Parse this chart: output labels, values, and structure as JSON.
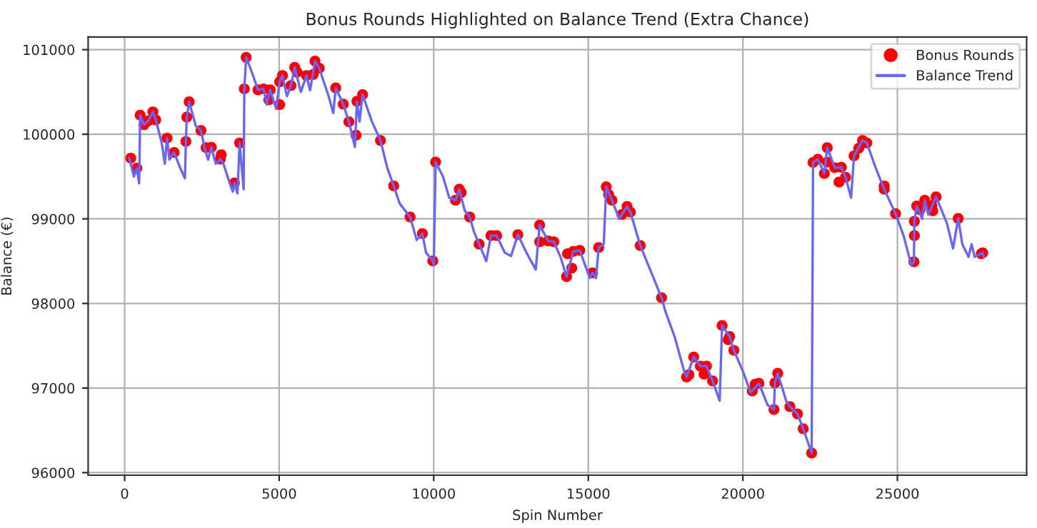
{
  "chart_data": {
    "type": "line",
    "title": "Bonus Rounds Highlighted on Balance Trend (Extra Chance)",
    "xlabel": "Spin Number",
    "ylabel": "Balance (€)",
    "xlim": [
      -1180,
      29180
    ],
    "ylim": [
      95970,
      101150
    ],
    "xticks": [
      0,
      5000,
      10000,
      15000,
      20000,
      25000
    ],
    "yticks": [
      96000,
      97000,
      98000,
      99000,
      100000,
      101000
    ],
    "grid": true,
    "legend": "top right",
    "series": [
      {
        "name": "Bonus Rounds",
        "type": "scatter",
        "color": "#ff0000",
        "marker": "circle",
        "x": [
          198,
          396,
          503,
          625,
          762,
          915,
          1006,
          1372,
          1601,
          1982,
          2012,
          2088,
          2470,
          2637,
          2805,
          3095,
          3125,
          3552,
          3720,
          3872,
          3933,
          4314,
          4497,
          4665,
          4710,
          5015,
          5015,
          5107,
          5381,
          5503,
          5579,
          5884,
          6098,
          6159,
          6296,
          6829,
          7073,
          7256,
          7485,
          7515,
          7698,
          8277,
          8704,
          9235,
          9633,
          9969,
          10061,
          10703,
          10826,
          10887,
          11162,
          11468,
          11850,
          12034,
          12722,
          13425,
          13425,
          13700,
          13884,
          14297,
          14327,
          14465,
          14511,
          14725,
          15138,
          15336,
          15581,
          15657,
          15765,
          16086,
          16254,
          16361,
          16682,
          17370,
          18180,
          18257,
          18410,
          18624,
          18746,
          18823,
          19021,
          19329,
          19527,
          19573,
          19710,
          20305,
          20396,
          20518,
          21006,
          21037,
          21128,
          21524,
          21768,
          21951,
          22226,
          22271,
          22424,
          22637,
          22729,
          22729,
          22973,
          23110,
          23186,
          23323,
          23598,
          23750,
          23872,
          24009,
          24573,
          24573,
          24939,
          25534,
          25549,
          25549,
          25625,
          25732,
          25884,
          26113,
          26143,
          26250,
          26966,
          27713,
          27759
        ],
        "values": [
          99717,
          99599,
          100226,
          100113,
          100158,
          100265,
          100170,
          99955,
          99785,
          99915,
          100203,
          100384,
          100045,
          99842,
          99847,
          99706,
          99757,
          99424,
          99898,
          100537,
          100910,
          100525,
          100537,
          100407,
          100525,
          100621,
          100350,
          100695,
          100576,
          100791,
          100734,
          100695,
          100706,
          100864,
          100780,
          100548,
          100356,
          100147,
          99989,
          100390,
          100469,
          99927,
          99390,
          99023,
          98825,
          98503,
          99672,
          99220,
          99350,
          99311,
          99023,
          98701,
          98802,
          98802,
          98814,
          98927,
          98729,
          98740,
          98729,
          98317,
          98588,
          98418,
          98616,
          98627,
          98362,
          98661,
          99379,
          99288,
          99220,
          99051,
          99147,
          99080,
          98684,
          98068,
          97131,
          97159,
          97367,
          97260,
          97164,
          97260,
          97085,
          97740,
          97571,
          97610,
          97446,
          96966,
          97045,
          97056,
          96746,
          97062,
          97175,
          96780,
          96695,
          96520,
          96232,
          99667,
          99706,
          99537,
          99672,
          99842,
          99605,
          99435,
          99610,
          99492,
          99746,
          99836,
          99927,
          99898,
          99350,
          99390,
          99062,
          98492,
          98802,
          98972,
          99153,
          99108,
          99220,
          99158,
          99096,
          99260,
          99006,
          98588,
          98599
        ]
      },
      {
        "name": "Balance Trend",
        "color": "#6666ff",
        "line_style": "solid",
        "x": [
          150,
          300,
          396,
          470,
          503,
          625,
          762,
          915,
          1006,
          1200,
          1300,
          1372,
          1450,
          1601,
          1800,
          1950,
          1982,
          2012,
          2088,
          2300,
          2470,
          2600,
          2700,
          2805,
          2950,
          3095,
          3200,
          3400,
          3500,
          3552,
          3650,
          3720,
          3850,
          3872,
          3933,
          4100,
          4314,
          4497,
          4600,
          4710,
          4900,
          5015,
          5107,
          5250,
          5381,
          5503,
          5700,
          5884,
          6000,
          6159,
          6296,
          6600,
          6750,
          6829,
          7073,
          7256,
          7450,
          7515,
          7600,
          7698,
          8000,
          8277,
          8500,
          8704,
          8900,
          9235,
          9450,
          9633,
          9750,
          9969,
          10000,
          10061,
          10300,
          10500,
          10703,
          10826,
          11000,
          11162,
          11300,
          11468,
          11700,
          11850,
          12034,
          12300,
          12500,
          12722,
          13000,
          13300,
          13425,
          13700,
          13884,
          14100,
          14297,
          14511,
          14725,
          14950,
          15050,
          15138,
          15250,
          15336,
          15500,
          15581,
          15765,
          16000,
          16254,
          16361,
          16682,
          17000,
          17370,
          17500,
          17800,
          18100,
          18180,
          18410,
          18624,
          18823,
          19021,
          19250,
          19329,
          19573,
          19710,
          20000,
          20250,
          20305,
          20518,
          20800,
          21006,
          21037,
          21128,
          21400,
          21524,
          21768,
          21951,
          22226,
          22271,
          22424,
          22637,
          22729,
          22973,
          23186,
          23323,
          23500,
          23598,
          23872,
          24009,
          24300,
          24573,
          24939,
          25200,
          25450,
          25534,
          25549,
          25625,
          25800,
          25884,
          26000,
          26250,
          26600,
          26800,
          26966,
          27100,
          27300,
          27400,
          27500,
          27713,
          27759,
          27800
        ],
        "values": [
          99720,
          99500,
          99599,
          99420,
          100226,
          100113,
          100158,
          100265,
          100170,
          99900,
          99650,
          99955,
          99700,
          99785,
          99600,
          99480,
          99915,
          100203,
          100384,
          100100,
          100045,
          99820,
          99700,
          99847,
          99650,
          99706,
          99650,
          99420,
          99320,
          99424,
          99300,
          99898,
          99350,
          100537,
          100910,
          100750,
          100525,
          100537,
          100350,
          100525,
          100300,
          100621,
          100695,
          100450,
          100576,
          100791,
          100500,
          100695,
          100520,
          100864,
          100780,
          100450,
          100250,
          100548,
          100356,
          100147,
          99850,
          100390,
          100150,
          100469,
          100150,
          99927,
          99600,
          99390,
          99180,
          99023,
          98750,
          98825,
          98600,
          98503,
          98450,
          99672,
          99500,
          99250,
          99220,
          99350,
          99100,
          99023,
          98850,
          98701,
          98500,
          98802,
          98802,
          98600,
          98560,
          98814,
          98600,
          98400,
          98927,
          98740,
          98729,
          98550,
          98317,
          98616,
          98627,
          98400,
          98300,
          98362,
          98300,
          98661,
          98700,
          99379,
          99220,
          99000,
          99147,
          99080,
          98684,
          98400,
          98068,
          97900,
          97600,
          97200,
          97131,
          97367,
          97260,
          97260,
          97085,
          96850,
          97740,
          97610,
          97446,
          97200,
          96950,
          96966,
          97056,
          96800,
          96746,
          97062,
          97175,
          96850,
          96780,
          96695,
          96520,
          96232,
          99667,
          99706,
          99537,
          99842,
          99605,
          99610,
          99492,
          99250,
          99746,
          99927,
          99898,
          99600,
          99350,
          99062,
          98800,
          98450,
          98492,
          98972,
          99153,
          99000,
          99220,
          99050,
          99260,
          98950,
          98650,
          99006,
          98700,
          98550,
          98700,
          98550,
          98588,
          98599,
          98550
        ]
      }
    ]
  }
}
